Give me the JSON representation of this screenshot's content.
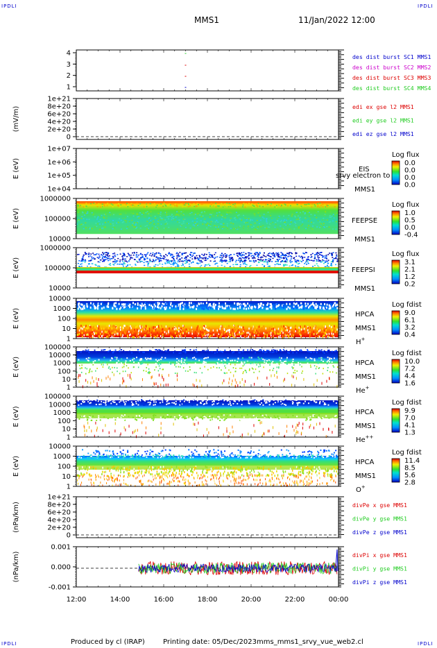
{
  "header": {
    "corner_left_top": "IPDLI",
    "corner_right_top": "IPDLI",
    "corner_left_bottom": "IPDLI",
    "corner_right_bottom": "IPDLI",
    "spacecraft": "MMS1",
    "datetime": "11/Jan/2022 12:00"
  },
  "footer": {
    "produced_by": "Produced by cl (IRAP)",
    "printing_date": "Printing date: 05/Dec/2023",
    "filename": "mms_mms1_srvy_vue_web2.cl"
  },
  "colors": {
    "blue": "#0000cc",
    "red": "#dd0000",
    "green": "#22cc22",
    "magenta": "#cc00cc"
  },
  "chart_data": {
    "type": "heatmap",
    "x_tick_labels": [
      "12:00",
      "14:00",
      "16:00",
      "18:00",
      "20:00",
      "22:00",
      "00:00"
    ],
    "panels": [
      {
        "id": "burst",
        "ylabel": "",
        "ytick_labels": [
          "4",
          "3",
          "2",
          "1"
        ],
        "legend": [
          {
            "text": "des dist burst SC1 MMS1",
            "color": "#0000cc"
          },
          {
            "text": "des dist burst SC2 MMS2",
            "color": "#cc00cc"
          },
          {
            "text": "des dist burst SC3 MMS3",
            "color": "#dd0000"
          },
          {
            "text": "des dist burst SC4 MMS4",
            "color": "#22cc22"
          }
        ]
      },
      {
        "id": "edi",
        "ylabel": "(mV/m)",
        "ytick_labels": [
          "1e+21",
          "8e+20",
          "6e+20",
          "4e+20",
          "2e+20",
          "0"
        ],
        "legend": [
          {
            "text": "edi ex gse l2 MMS1",
            "color": "#dd0000"
          },
          {
            "text": "edi ey gse l2 MMS1",
            "color": "#22cc22"
          },
          {
            "text": "edi ez gse l2 MMS1",
            "color": "#0000cc"
          }
        ]
      },
      {
        "id": "eis",
        "ylabel": "E (eV)",
        "ytick_labels": [
          "1e+07",
          "1e+06",
          "1e+05",
          "1e+04"
        ],
        "instrument": "EIS",
        "overlay": "srvy electron to",
        "spacecraft": "MMS1",
        "species": "",
        "cb_title": "Log flux",
        "cb_labels": [
          "0.0",
          "0.0",
          "0.0",
          "0.0"
        ]
      },
      {
        "id": "feepse",
        "ylabel": "E (eV)",
        "ytick_labels": [
          "1000000",
          "100000",
          "10000"
        ],
        "instrument": "FEEPSE",
        "spacecraft": "MMS1",
        "species": "",
        "cb_title": "Log flux",
        "cb_labels": [
          "1.0",
          "0.5",
          "0.0",
          "-0.4"
        ]
      },
      {
        "id": "feepsi",
        "ylabel": "E (eV)",
        "ytick_labels": [
          "1000000",
          "100000",
          "10000"
        ],
        "instrument": "FEEPSI",
        "spacecraft": "MMS1",
        "species": "",
        "cb_title": "Log flux",
        "cb_labels": [
          "3.1",
          "2.1",
          "1.2",
          "0.2"
        ]
      },
      {
        "id": "hpca_h",
        "ylabel": "E (eV)",
        "ytick_labels": [
          "10000",
          "1000",
          "100",
          "10",
          "1"
        ],
        "instrument": "HPCA",
        "spacecraft": "MMS1",
        "species": "H",
        "species_sup": "+",
        "cb_title": "Log fdist",
        "cb_labels": [
          "9.0",
          "6.1",
          "3.2",
          "0.4"
        ]
      },
      {
        "id": "hpca_he",
        "ylabel": "E (eV)",
        "ytick_labels": [
          "100000",
          "10000",
          "1000",
          "100",
          "10",
          "1"
        ],
        "instrument": "HPCA",
        "spacecraft": "MMS1",
        "species": "He",
        "species_sup": "+",
        "cb_title": "Log fdist",
        "cb_labels": [
          "10.0",
          "7.2",
          "4.4",
          "1.6"
        ]
      },
      {
        "id": "hpca_hepp",
        "ylabel": "E (eV)",
        "ytick_labels": [
          "100000",
          "10000",
          "1000",
          "100",
          "10",
          "1"
        ],
        "instrument": "HPCA",
        "spacecraft": "MMS1",
        "species": "He",
        "species_sup": "++",
        "cb_title": "Log fdist",
        "cb_labels": [
          "9.9",
          "7.0",
          "4.1",
          "1.3"
        ]
      },
      {
        "id": "hpca_o",
        "ylabel": "E (eV)",
        "ytick_labels": [
          "10000",
          "1000",
          "100",
          "10",
          "1"
        ],
        "instrument": "HPCA",
        "spacecraft": "MMS1",
        "species": "O",
        "species_sup": "+",
        "cb_title": "Log fdist",
        "cb_labels": [
          "11.4",
          "8.5",
          "5.6",
          "2.8"
        ]
      },
      {
        "id": "divpe",
        "ylabel": "(nPa/km)",
        "ytick_labels": [
          "1e+21",
          "8e+20",
          "6e+20",
          "4e+20",
          "2e+20",
          "0"
        ],
        "legend": [
          {
            "text": "divPe x gse MMS1",
            "color": "#dd0000"
          },
          {
            "text": "divPe y gse MMS1",
            "color": "#22cc22"
          },
          {
            "text": "divPe z gse MMS1",
            "color": "#0000cc"
          }
        ]
      },
      {
        "id": "divpi",
        "ylabel": "(nPa/km)",
        "ytick_labels": [
          "0.001",
          "0.000",
          "-0.001"
        ],
        "legend": [
          {
            "text": "divPi x gse MMS1",
            "color": "#dd0000"
          },
          {
            "text": "divPi y gse MMS1",
            "color": "#22cc22"
          },
          {
            "text": "divPi z gse MMS1",
            "color": "#0000cc"
          }
        ]
      }
    ]
  }
}
